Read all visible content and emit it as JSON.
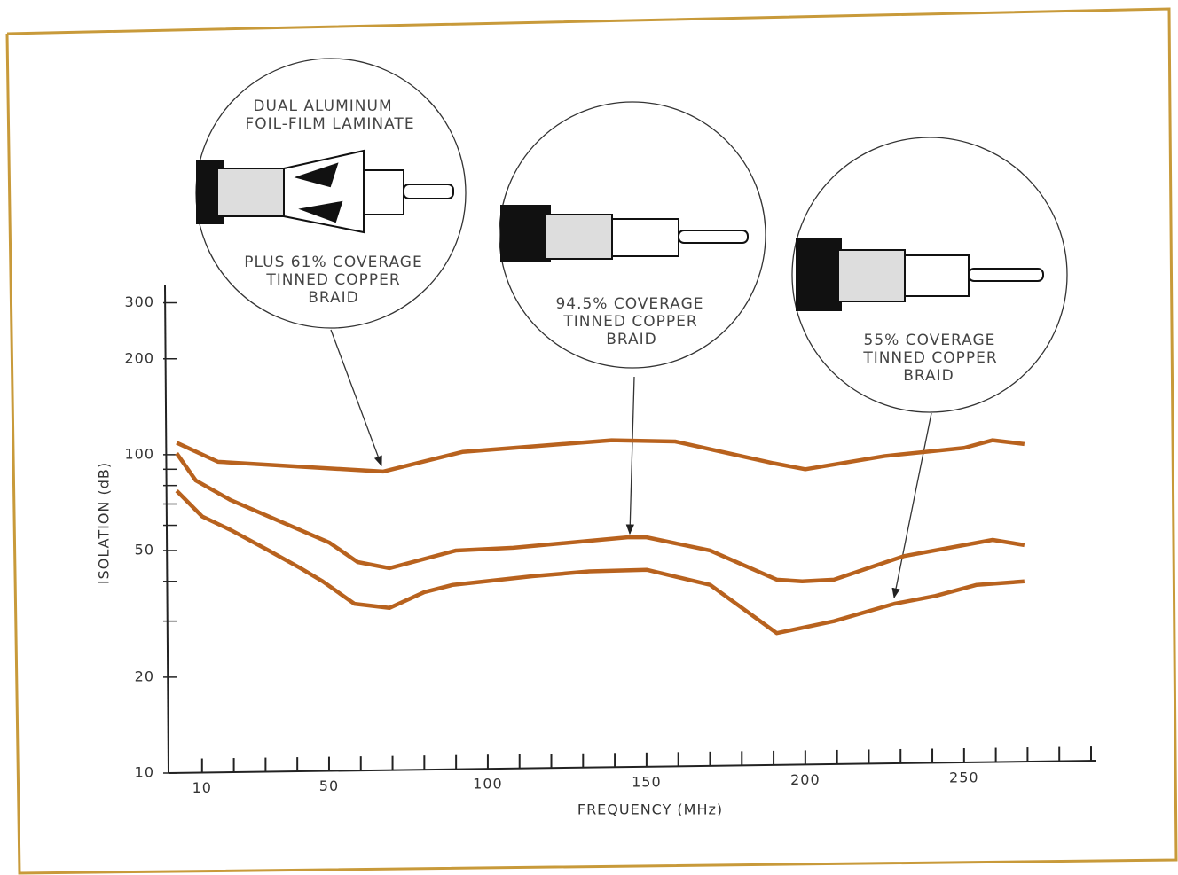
{
  "chart_data": {
    "type": "line",
    "x_label": "FREQUENCY (MHz)",
    "y_label": "ISOLATION (dB)",
    "xlim": [
      0,
      290
    ],
    "xticks": [
      10,
      50,
      100,
      150,
      200,
      250
    ],
    "x_tick_marks": [
      10,
      20,
      30,
      40,
      50,
      60,
      70,
      80,
      90,
      100,
      110,
      120,
      130,
      140,
      150,
      160,
      170,
      180,
      190,
      200,
      210,
      220,
      230,
      240,
      250,
      260,
      270,
      280,
      290
    ],
    "ylim": [
      10,
      340
    ],
    "y_log": true,
    "yticks": [
      10,
      20,
      50,
      100,
      200,
      300
    ],
    "y_minor_ticks": [
      30,
      40,
      60,
      70,
      80,
      90
    ],
    "series": [
      {
        "color": "#b8621e",
        "x": [
          2,
          15,
          67,
          92,
          139,
          159,
          172,
          190,
          200,
          225,
          250,
          259,
          269
        ],
        "values": [
          109,
          95,
          88.5,
          102,
          111,
          110,
          103,
          94,
          90,
          99,
          105,
          111,
          108
        ]
      },
      {
        "color": "#b8621e",
        "x": [
          2,
          8,
          19,
          50,
          59,
          69,
          90,
          108,
          144,
          150,
          170,
          191,
          199,
          209,
          231,
          259,
          269
        ],
        "values": [
          101,
          83,
          72,
          53,
          46,
          44,
          50,
          51,
          55,
          55,
          50,
          40.5,
          40,
          40.5,
          48,
          54,
          52
        ]
      },
      {
        "color": "#b8621e",
        "x": [
          2,
          10,
          19,
          31,
          41,
          48,
          58,
          69,
          80,
          89,
          114,
          132,
          150,
          170,
          191,
          209,
          228,
          241,
          254,
          269
        ],
        "values": [
          77,
          64,
          58,
          50,
          44,
          40,
          34,
          33,
          37,
          39,
          41.5,
          43,
          43.5,
          39,
          27.5,
          30,
          34,
          36,
          39,
          40
        ]
      }
    ],
    "annotations": [
      {
        "lines": [
          "DUAL ALUMINUM",
          "FOIL-FILM LAMINATE",
          "PLUS 61% COVERAGE",
          "TINNED COPPER",
          "BRAID"
        ]
      },
      {
        "lines": [
          "94.5% COVERAGE",
          "TINNED COPPER",
          "BRAID"
        ]
      },
      {
        "lines": [
          "55% COVERAGE",
          "TINNED COPPER",
          "BRAID"
        ]
      }
    ]
  }
}
